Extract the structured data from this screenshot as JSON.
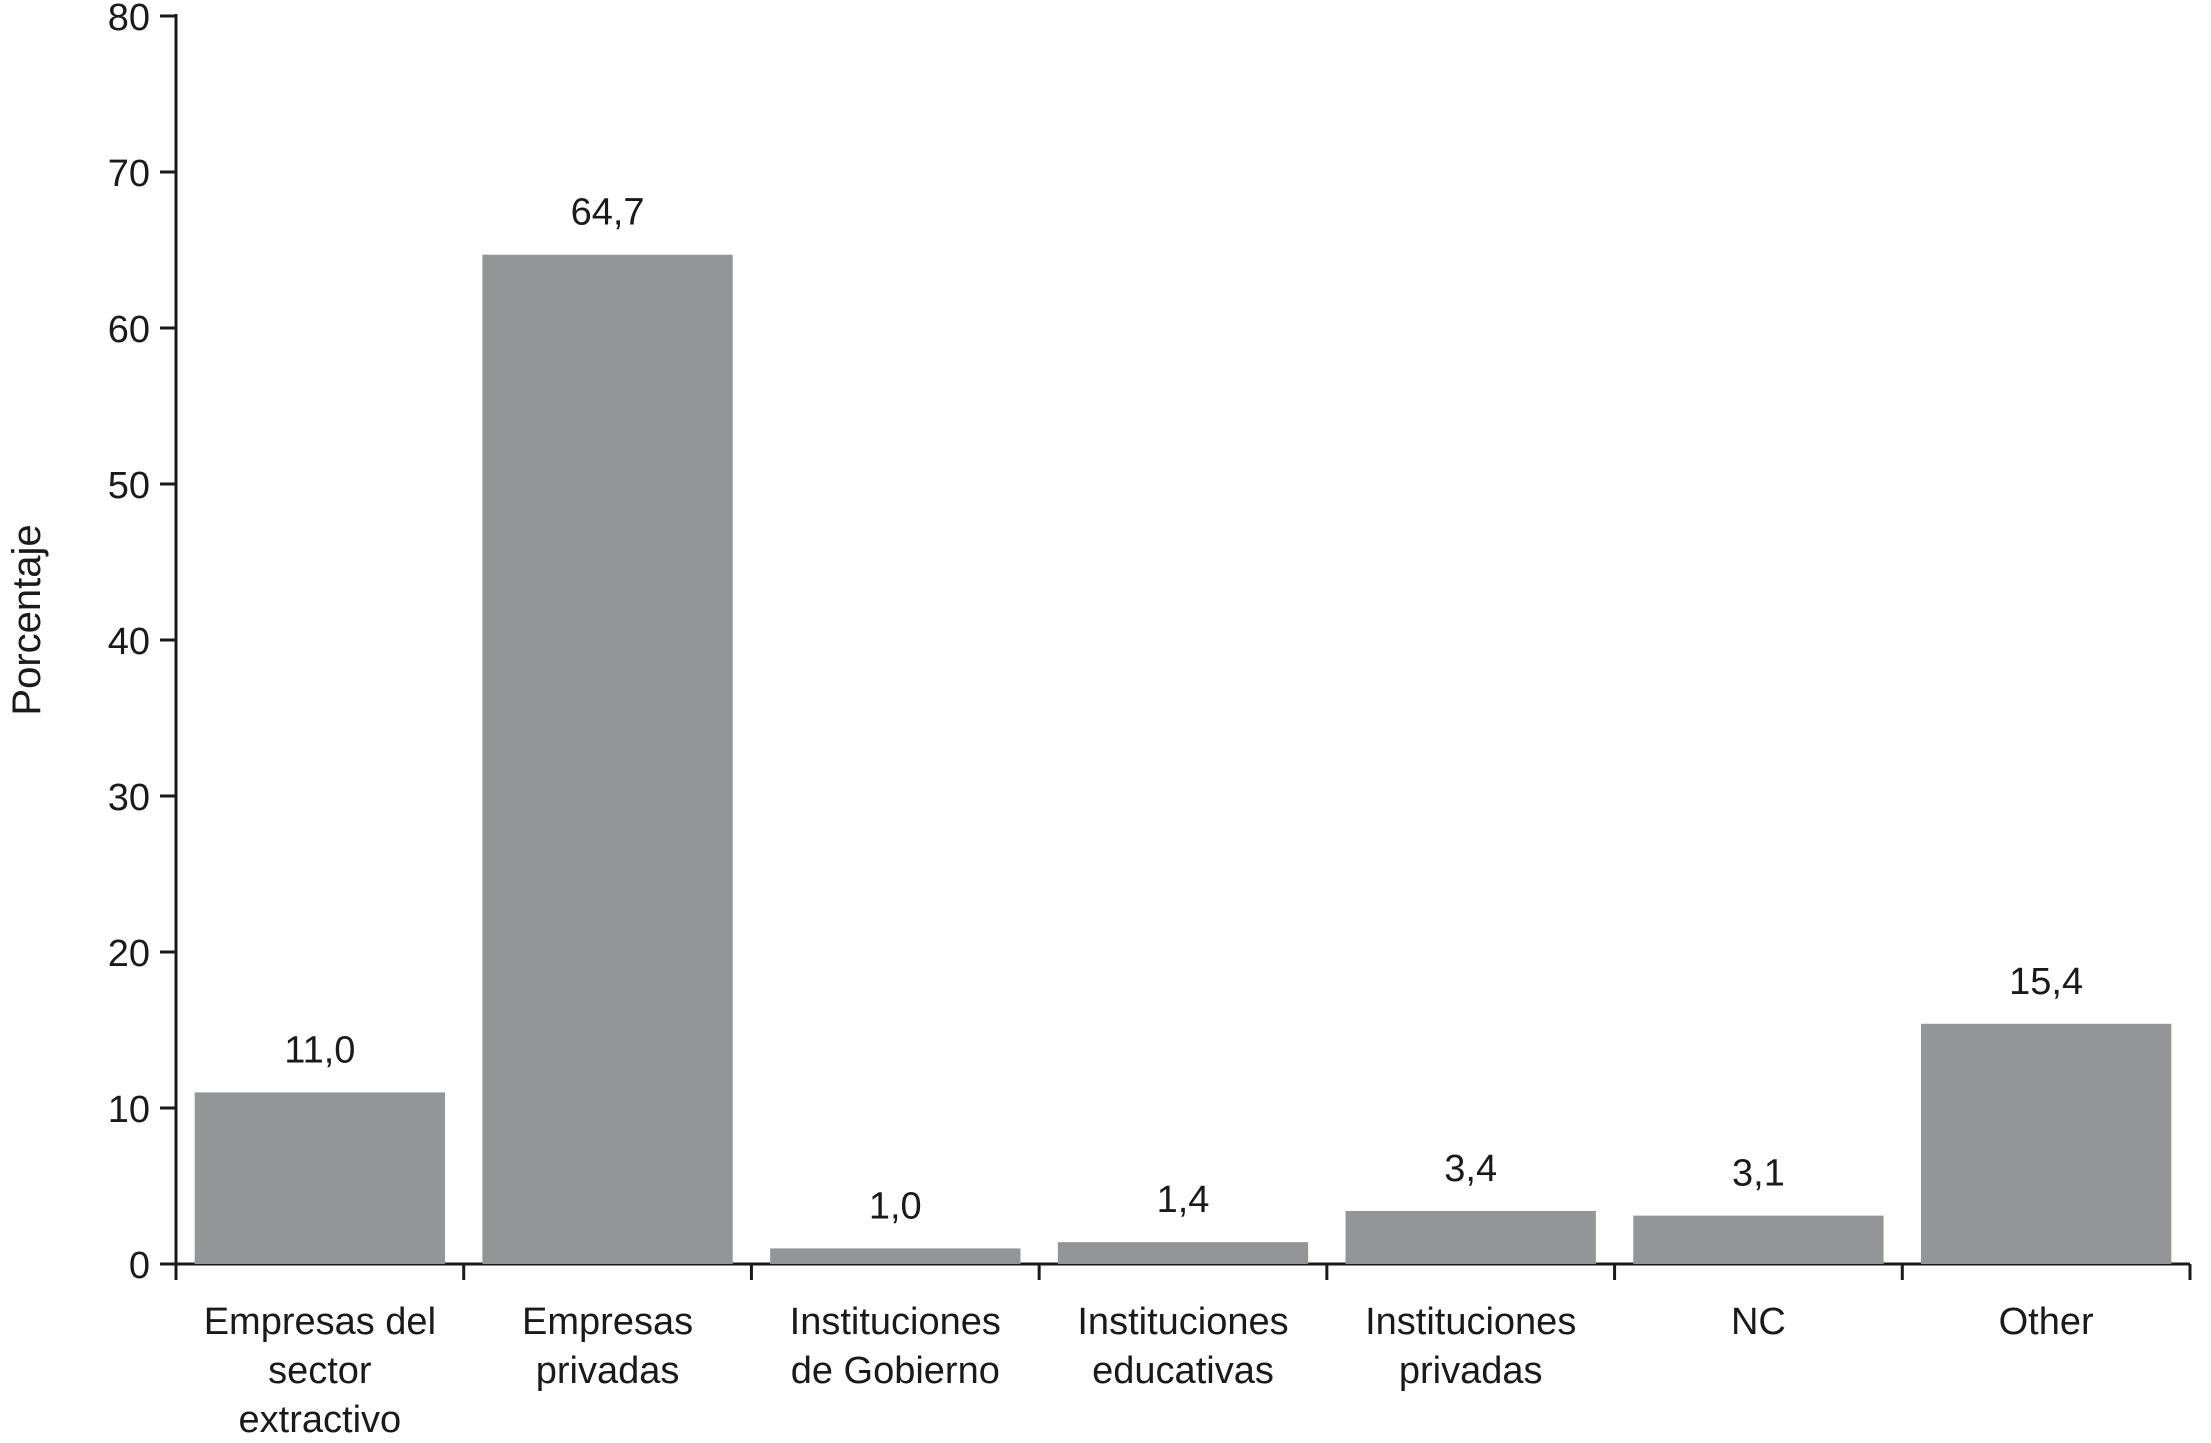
{
  "chart_data": {
    "type": "bar",
    "title": "",
    "xlabel": "",
    "ylabel": "Porcentaje",
    "ylim": [
      0,
      80
    ],
    "yticks": [
      0,
      10,
      20,
      30,
      40,
      50,
      60,
      70,
      80
    ],
    "categories": [
      [
        "Empresas del",
        "sector",
        "extractivo"
      ],
      [
        "Empresas",
        "privadas"
      ],
      [
        "Instituciones",
        "de Gobierno"
      ],
      [
        "Instituciones",
        "educativas"
      ],
      [
        "Instituciones",
        "privadas"
      ],
      [
        "NC"
      ],
      [
        "Other"
      ]
    ],
    "values": [
      11.0,
      64.7,
      1.0,
      1.4,
      3.4,
      3.1,
      15.4
    ],
    "value_labels": [
      "11,0",
      "64,7",
      "1,0",
      "1,4",
      "3,4",
      "3,1",
      "15,4"
    ],
    "grid": false,
    "legend": "none",
    "bar_color": "#939598",
    "axis_color": "#1a1a1a"
  }
}
